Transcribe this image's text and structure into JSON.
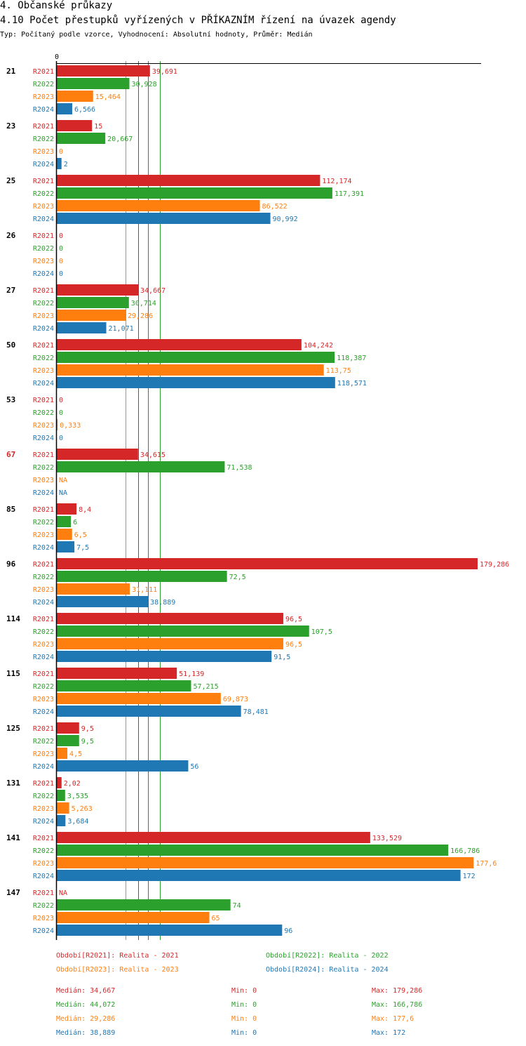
{
  "header": {
    "title1": "4. Občanské průkazy",
    "title2": "4.10 Počet přestupků vyřízených v PŘÍKAZNÍM řízení na úvazek agendy",
    "subtitle": "Typ: Počítaný podle vzorce, Vyhodnocení: Absolutní hodnoty, Průměr: Medián"
  },
  "colors": {
    "R2021": "#d62728",
    "R2022": "#2ca02c",
    "R2023": "#ff7f0e",
    "R2024": "#1f77b4",
    "highlight_category": "#d62728",
    "axis": "#000000"
  },
  "chart_data": {
    "type": "bar",
    "orientation": "horizontal",
    "axis_zero_label": "0",
    "xlim": [
      0,
      179.286
    ],
    "series_names": [
      "R2021",
      "R2022",
      "R2023",
      "R2024"
    ],
    "highlight_categories": [
      "67"
    ],
    "categories": [
      {
        "name": "21",
        "values": [
          39.691,
          30.928,
          15.464,
          6.566
        ],
        "labels": [
          "39,691",
          "30,928",
          "15,464",
          "6,566"
        ]
      },
      {
        "name": "23",
        "values": [
          15,
          20.667,
          0,
          2
        ],
        "labels": [
          "15",
          "20,667",
          "0",
          "2"
        ]
      },
      {
        "name": "25",
        "values": [
          112.174,
          117.391,
          86.522,
          90.992
        ],
        "labels": [
          "112,174",
          "117,391",
          "86,522",
          "90,992"
        ]
      },
      {
        "name": "26",
        "values": [
          0,
          0,
          0,
          0
        ],
        "labels": [
          "0",
          "0",
          "0",
          "0"
        ]
      },
      {
        "name": "27",
        "values": [
          34.667,
          30.714,
          29.286,
          21.071
        ],
        "labels": [
          "34,667",
          "30,714",
          "29,286",
          "21,071"
        ]
      },
      {
        "name": "50",
        "values": [
          104.242,
          118.387,
          113.75,
          118.571
        ],
        "labels": [
          "104,242",
          "118,387",
          "113,75",
          "118,571"
        ]
      },
      {
        "name": "53",
        "values": [
          0,
          0,
          0.333,
          0
        ],
        "labels": [
          "0",
          "0",
          "0,333",
          "0"
        ]
      },
      {
        "name": "67",
        "values": [
          34.615,
          71.538,
          null,
          null
        ],
        "labels": [
          "34,615",
          "71,538",
          "NA",
          "NA"
        ]
      },
      {
        "name": "85",
        "values": [
          8.4,
          6,
          6.5,
          7.5
        ],
        "labels": [
          "8,4",
          "6",
          "6,5",
          "7,5"
        ]
      },
      {
        "name": "96",
        "values": [
          179.286,
          72.5,
          31.111,
          38.889
        ],
        "labels": [
          "179,286",
          "72,5",
          "31,111",
          "38,889"
        ]
      },
      {
        "name": "114",
        "values": [
          96.5,
          107.5,
          96.5,
          91.5
        ],
        "labels": [
          "96,5",
          "107,5",
          "96,5",
          "91,5"
        ]
      },
      {
        "name": "115",
        "values": [
          51.139,
          57.215,
          69.873,
          78.481
        ],
        "labels": [
          "51,139",
          "57,215",
          "69,873",
          "78,481"
        ]
      },
      {
        "name": "125",
        "values": [
          9.5,
          9.5,
          4.5,
          56
        ],
        "labels": [
          "9,5",
          "9,5",
          "4,5",
          "56"
        ]
      },
      {
        "name": "131",
        "values": [
          2.02,
          3.535,
          5.263,
          3.684
        ],
        "labels": [
          "2,02",
          "3,535",
          "5,263",
          "3,684"
        ]
      },
      {
        "name": "141",
        "values": [
          133.529,
          166.786,
          177.6,
          172
        ],
        "labels": [
          "133,529",
          "166,786",
          "177,6",
          "172"
        ]
      },
      {
        "name": "147",
        "values": [
          null,
          74,
          65,
          96
        ],
        "labels": [
          "NA",
          "74",
          "65",
          "96"
        ]
      }
    ],
    "median_lines": {
      "R2021": 34.667,
      "R2022": 44.072,
      "R2023": 29.286,
      "R2024": 38.889
    }
  },
  "legend": [
    {
      "series": "R2021",
      "text": "Období[R2021]: Realita - 2021"
    },
    {
      "series": "R2022",
      "text": "Období[R2022]: Realita - 2022"
    },
    {
      "series": "R2023",
      "text": "Období[R2023]: Realita - 2023"
    },
    {
      "series": "R2024",
      "text": "Období[R2024]: Realita - 2024"
    }
  ],
  "stats": [
    {
      "series": "R2021",
      "median": "Medián: 34,667",
      "min": "Min: 0",
      "max": "Max: 179,286"
    },
    {
      "series": "R2022",
      "median": "Medián: 44,072",
      "min": "Min: 0",
      "max": "Max: 166,786"
    },
    {
      "series": "R2023",
      "median": "Medián: 29,286",
      "min": "Min: 0",
      "max": "Max: 177,6"
    },
    {
      "series": "R2024",
      "median": "Medián: 38,889",
      "min": "Min: 0",
      "max": "Max: 172"
    }
  ]
}
